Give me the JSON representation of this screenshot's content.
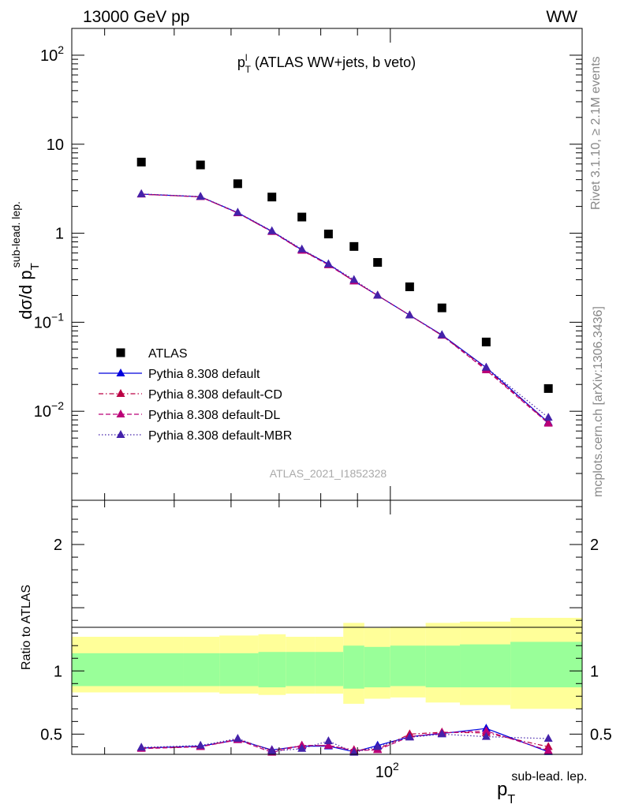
{
  "header": {
    "left": "13000 GeV pp",
    "right": "WW"
  },
  "side_labels": {
    "rivet": "Rivet 3.1.10, ≥ 2.1M events",
    "mcplots": "mcplots.cern.ch [arXiv:1306.3436]"
  },
  "analysis_id": "ATLAS_2021_I1852328",
  "chart_data": [
    {
      "type": "scatter",
      "panel": "main",
      "title_main": "p",
      "title_sup": "l",
      "title_sub": "T",
      "title_rest": " (ATLAS WW+jets, b veto)",
      "ylabel": "dσ/d p",
      "ylabel_sub": "T",
      "ylabel_sup": "sub-lead. lep.",
      "xlabel": "p",
      "xlabel_sub": "T",
      "xlabel_sup": "sub-lead. lep.",
      "x_scale": "log",
      "y_scale": "log",
      "xlim": [
        36,
        185
      ],
      "ylim": [
        0.001,
        200
      ],
      "x_tick_labels": [
        {
          "value": 100,
          "mantissa": "10",
          "exp": "2"
        }
      ],
      "y_tick_labels": [
        {
          "value": 100,
          "mantissa": "10",
          "exp": "2"
        },
        {
          "value": 10,
          "text": "10"
        },
        {
          "value": 1,
          "text": "1"
        },
        {
          "value": 0.1,
          "mantissa": "10",
          "exp": "−1"
        },
        {
          "value": 0.01,
          "mantissa": "10",
          "exp": "−2"
        }
      ],
      "legend_position": "bottom-left",
      "x": [
        45,
        54.4,
        61.3,
        68.4,
        75.3,
        82,
        89,
        96,
        106.4,
        118,
        136,
        166
      ],
      "series": [
        {
          "name": "ATLAS",
          "color": "#000000",
          "marker": "square",
          "dash": "none",
          "values": [
            6.3,
            5.85,
            3.6,
            2.55,
            1.52,
            0.98,
            0.71,
            0.47,
            0.25,
            0.145,
            0.06,
            0.018
          ]
        },
        {
          "name": "Pythia 8.308 default",
          "color": "#0000dd",
          "marker": "triangle",
          "dash": "solid",
          "values": [
            2.75,
            2.57,
            1.7,
            1.05,
            0.65,
            0.45,
            0.29,
            0.2,
            0.12,
            0.072,
            0.031,
            0.0075
          ]
        },
        {
          "name": "Pythia 8.308 default-CD",
          "color": "#bb0044",
          "marker": "triangle",
          "dash": "dashdot",
          "values": [
            2.75,
            2.56,
            1.69,
            1.04,
            0.65,
            0.44,
            0.29,
            0.2,
            0.12,
            0.071,
            0.03,
            0.0074
          ]
        },
        {
          "name": "Pythia 8.308 default-DL",
          "color": "#bb0077",
          "marker": "triangle",
          "dash": "dashed",
          "values": [
            2.74,
            2.56,
            1.69,
            1.04,
            0.64,
            0.44,
            0.29,
            0.2,
            0.12,
            0.071,
            0.029,
            0.0073
          ]
        },
        {
          "name": "Pythia 8.308 default-MBR",
          "color": "#4422aa",
          "marker": "triangle",
          "dash": "dotted",
          "values": [
            2.76,
            2.58,
            1.71,
            1.06,
            0.66,
            0.45,
            0.3,
            0.2,
            0.12,
            0.072,
            0.031,
            0.0085
          ]
        }
      ]
    },
    {
      "type": "line",
      "panel": "ratio",
      "ylabel": "Ratio to ATLAS",
      "y_scale": "linear",
      "ylim": [
        0.34,
        2.35
      ],
      "y_tick_labels": [
        {
          "value": 0.5,
          "text": "0.5"
        },
        {
          "value": 1,
          "text": "1"
        },
        {
          "value": 2,
          "text": "2"
        }
      ],
      "bin_edges": [
        36,
        51.5,
        57.8,
        65.5,
        71.5,
        78.5,
        86,
        92,
        100,
        112,
        125,
        147,
        185
      ],
      "band_inner": {
        "color": "#99ff99",
        "low": [
          0.88,
          0.88,
          0.88,
          0.87,
          0.88,
          0.88,
          0.86,
          0.87,
          0.88,
          0.87,
          0.87,
          0.87
        ],
        "high": [
          1.14,
          1.14,
          1.14,
          1.15,
          1.15,
          1.15,
          1.2,
          1.19,
          1.2,
          1.2,
          1.21,
          1.23
        ]
      },
      "band_outer": {
        "color": "#ffff99",
        "low": [
          0.83,
          0.83,
          0.82,
          0.81,
          0.82,
          0.82,
          0.74,
          0.78,
          0.79,
          0.75,
          0.73,
          0.7
        ],
        "high": [
          1.27,
          1.27,
          1.28,
          1.29,
          1.27,
          1.27,
          1.38,
          1.34,
          1.35,
          1.38,
          1.39,
          1.42
        ]
      },
      "x": [
        45,
        54.4,
        61.3,
        68.4,
        75.3,
        82,
        89,
        96,
        106.4,
        118,
        136,
        166
      ],
      "series": [
        {
          "name": "Pythia 8.308 default",
          "color": "#0000dd",
          "marker": "triangle",
          "dash": "solid",
          "values": [
            0.39,
            0.405,
            0.455,
            0.375,
            0.405,
            0.405,
            0.36,
            0.41,
            0.48,
            0.505,
            0.545,
            0.36
          ]
        },
        {
          "name": "Pythia 8.308 default-CD",
          "color": "#bb0044",
          "marker": "triangle",
          "dash": "dashdot",
          "values": [
            0.39,
            0.4,
            0.46,
            0.37,
            0.41,
            0.41,
            0.375,
            0.38,
            0.5,
            0.515,
            0.51,
            0.4
          ]
        },
        {
          "name": "Pythia 8.308 default-DL",
          "color": "#bb0077",
          "marker": "triangle",
          "dash": "dashed",
          "values": [
            0.385,
            0.4,
            0.455,
            0.355,
            0.41,
            0.41,
            0.37,
            0.375,
            0.48,
            0.51,
            0.525,
            0.37
          ]
        },
        {
          "name": "Pythia 8.308 default-MBR",
          "color": "#4422aa",
          "marker": "triangle",
          "dash": "dotted",
          "values": [
            0.395,
            0.41,
            0.465,
            0.365,
            0.385,
            0.445,
            0.355,
            0.4,
            0.475,
            0.5,
            0.48,
            0.465
          ]
        }
      ]
    }
  ]
}
